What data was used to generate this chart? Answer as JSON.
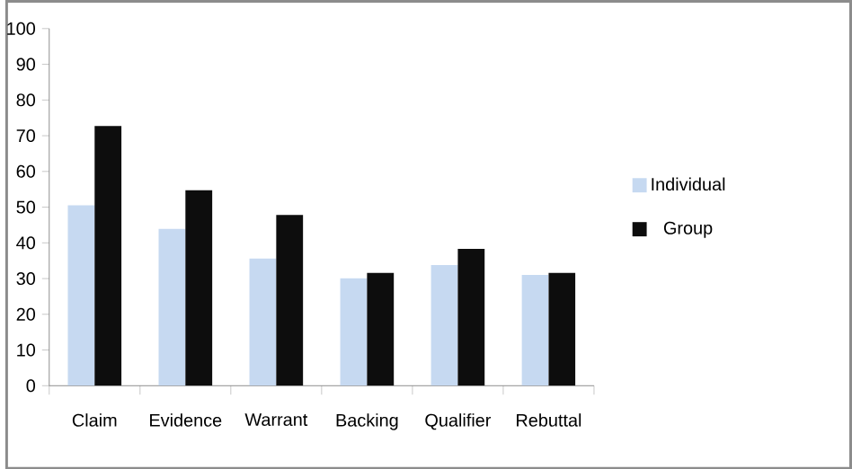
{
  "chart_data": {
    "type": "bar",
    "categories": [
      "Claim",
      "Evidence",
      "Warrant",
      "Backing",
      "Qualifier",
      "Rebuttal"
    ],
    "series": [
      {
        "name": "Individual",
        "color": "#c6d9f1",
        "values": [
          50.5,
          43.9,
          35.6,
          30.1,
          33.8,
          31
        ]
      },
      {
        "name": "Group",
        "color": "#0d0d0d",
        "values": [
          72.7,
          54.7,
          47.8,
          31.6,
          38.3,
          31.6
        ]
      }
    ],
    "ylim": [
      0,
      100
    ],
    "yticks": [
      0,
      10,
      20,
      30,
      40,
      50,
      60,
      70,
      80,
      90,
      100
    ],
    "grid": false,
    "legend": "right"
  }
}
